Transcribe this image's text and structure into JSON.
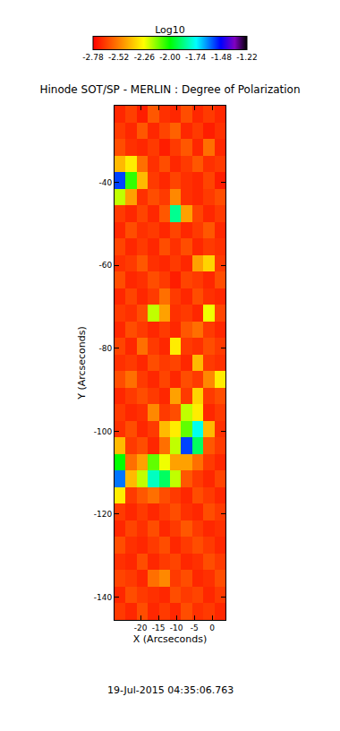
{
  "chart_data": {
    "type": "heatmap",
    "title": "Hinode SOT/SP - MERLIN : Degree of Polarization",
    "annotation": "19-Jul-2015 04:35:06.763",
    "x_label": "X (Arcseconds)",
    "y_label": "Y (Arcseconds)",
    "xlim": [
      -27.3,
      3.7
    ],
    "ylim": [
      -145.5,
      -21.5
    ],
    "xticks": [
      -20,
      -15,
      -10,
      -5,
      0
    ],
    "yticks": [
      -140,
      -120,
      -100,
      -80,
      -60,
      -40
    ],
    "x": [
      -25.75,
      -22.65,
      -19.55,
      -16.45,
      -13.35,
      -10.25,
      -7.15,
      -4.05,
      -0.95,
      2.15
    ],
    "y": [
      -23.5,
      -27.5,
      -31.5,
      -35.5,
      -39.5,
      -43.5,
      -47.5,
      -51.5,
      -55.5,
      -59.5,
      -63.5,
      -67.5,
      -71.5,
      -75.5,
      -79.5,
      -83.5,
      -87.5,
      -91.5,
      -95.5,
      -99.5,
      -103.5,
      -107.5,
      -111.5,
      -115.5,
      -119.5,
      -123.5,
      -127.5,
      -131.5,
      -135.5,
      -139.5,
      -143.5
    ],
    "z": [
      [
        -2.7,
        -2.65,
        -2.72,
        -2.6,
        -2.68,
        -2.7,
        -2.62,
        -2.7,
        -2.66,
        -2.7
      ],
      [
        -2.66,
        -2.7,
        -2.6,
        -2.7,
        -2.64,
        -2.58,
        -2.7,
        -2.66,
        -2.72,
        -2.68
      ],
      [
        -2.62,
        -2.68,
        -2.7,
        -2.66,
        -2.72,
        -2.66,
        -2.6,
        -2.7,
        -2.55,
        -2.7
      ],
      [
        -2.4,
        -2.3,
        -2.55,
        -2.68,
        -2.62,
        -2.7,
        -2.66,
        -2.6,
        -2.68,
        -2.66
      ],
      [
        -1.55,
        -2.05,
        -2.4,
        -2.66,
        -2.7,
        -2.64,
        -2.68,
        -2.7,
        -2.64,
        -2.72
      ],
      [
        -2.2,
        -2.45,
        -2.68,
        -2.62,
        -2.66,
        -2.5,
        -2.68,
        -2.7,
        -2.66,
        -2.62
      ],
      [
        -2.66,
        -2.7,
        -2.64,
        -2.7,
        -2.6,
        -1.85,
        -2.45,
        -2.64,
        -2.7,
        -2.66
      ],
      [
        -2.7,
        -2.62,
        -2.68,
        -2.66,
        -2.7,
        -2.64,
        -2.7,
        -2.66,
        -2.6,
        -2.7
      ],
      [
        -2.64,
        -2.7,
        -2.66,
        -2.7,
        -2.62,
        -2.68,
        -2.62,
        -2.7,
        -2.66,
        -2.68
      ],
      [
        -2.68,
        -2.66,
        -2.6,
        -2.68,
        -2.7,
        -2.66,
        -2.7,
        -2.45,
        -2.35,
        -2.66
      ],
      [
        -2.62,
        -2.7,
        -2.68,
        -2.62,
        -2.66,
        -2.72,
        -2.64,
        -2.66,
        -2.7,
        -2.62
      ],
      [
        -2.7,
        -2.64,
        -2.7,
        -2.66,
        -2.55,
        -2.66,
        -2.7,
        -2.62,
        -2.68,
        -2.7
      ],
      [
        -2.66,
        -2.68,
        -2.62,
        -2.2,
        -2.45,
        -2.68,
        -2.66,
        -2.7,
        -2.25,
        -2.64
      ],
      [
        -2.7,
        -2.62,
        -2.66,
        -2.7,
        -2.66,
        -2.7,
        -2.6,
        -2.55,
        -2.66,
        -2.7
      ],
      [
        -2.64,
        -2.7,
        -2.55,
        -2.66,
        -2.7,
        -2.3,
        -2.66,
        -2.68,
        -2.62,
        -2.66
      ],
      [
        -2.68,
        -2.66,
        -2.7,
        -2.62,
        -2.66,
        -2.64,
        -2.7,
        -2.4,
        -2.66,
        -2.68
      ],
      [
        -2.62,
        -2.55,
        -2.66,
        -2.7,
        -2.64,
        -2.7,
        -2.62,
        -2.66,
        -2.5,
        -2.3
      ],
      [
        -2.7,
        -2.66,
        -2.62,
        -2.66,
        -2.7,
        -2.45,
        -2.66,
        -2.35,
        -2.66,
        -2.62
      ],
      [
        -2.66,
        -2.7,
        -2.68,
        -2.5,
        -2.66,
        -2.62,
        -2.2,
        -2.3,
        -2.7,
        -2.66
      ],
      [
        -2.68,
        -2.62,
        -2.7,
        -2.66,
        -2.4,
        -2.3,
        -2.1,
        -1.75,
        -2.4,
        -2.68
      ],
      [
        -2.4,
        -2.66,
        -2.62,
        -2.7,
        -2.55,
        -2.2,
        -1.55,
        -1.9,
        -2.6,
        -2.66
      ],
      [
        -2.0,
        -2.55,
        -2.45,
        -2.1,
        -2.25,
        -2.45,
        -2.45,
        -2.55,
        -2.66,
        -2.7
      ],
      [
        -1.6,
        -2.4,
        -2.2,
        -1.8,
        -1.9,
        -2.2,
        -2.6,
        -2.66,
        -2.7,
        -2.64
      ],
      [
        -2.3,
        -2.66,
        -2.6,
        -2.55,
        -2.62,
        -2.66,
        -2.7,
        -2.62,
        -2.66,
        -2.7
      ],
      [
        -2.66,
        -2.7,
        -2.66,
        -2.7,
        -2.66,
        -2.62,
        -2.68,
        -2.7,
        -2.62,
        -2.66
      ],
      [
        -2.7,
        -2.64,
        -2.68,
        -2.62,
        -2.7,
        -2.66,
        -2.6,
        -2.66,
        -2.7,
        -2.68
      ],
      [
        -2.62,
        -2.68,
        -2.7,
        -2.66,
        -2.62,
        -2.7,
        -2.66,
        -2.62,
        -2.66,
        -2.7
      ],
      [
        -2.68,
        -2.7,
        -2.62,
        -2.7,
        -2.66,
        -2.64,
        -2.7,
        -2.68,
        -2.62,
        -2.66
      ],
      [
        -2.64,
        -2.66,
        -2.7,
        -2.55,
        -2.5,
        -2.66,
        -2.62,
        -2.7,
        -2.68,
        -2.62
      ],
      [
        -2.7,
        -2.62,
        -2.66,
        -2.68,
        -2.7,
        -2.62,
        -2.66,
        -2.64,
        -2.7,
        -2.66
      ],
      [
        -2.66,
        -2.7,
        -2.62,
        -2.7,
        -2.66,
        -2.7,
        -2.62,
        -2.68,
        -2.66,
        -2.7
      ]
    ],
    "colorbar": {
      "title": "Log10",
      "range": [
        -2.78,
        -1.22
      ],
      "ticks": [
        -2.78,
        -2.52,
        -2.26,
        {
          "value": -2,
          "label": "-2.00"
        },
        -1.74,
        -1.48,
        -1.22
      ]
    }
  }
}
